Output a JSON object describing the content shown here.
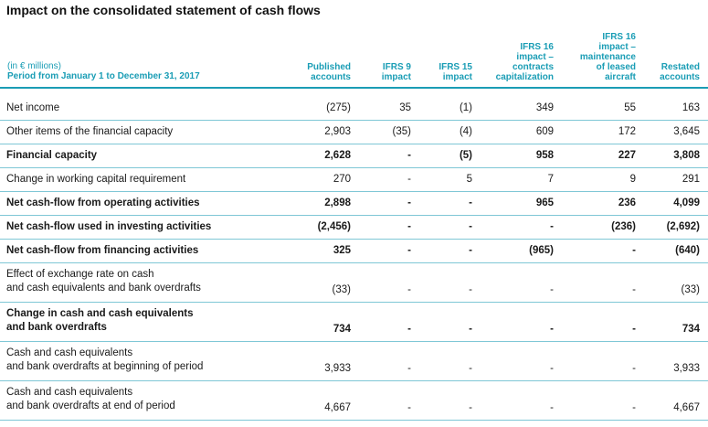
{
  "title": "Impact on the consolidated statement of cash flows",
  "header": {
    "units": "(in € millions)",
    "period": "Period from January 1 to December 31, 2017",
    "columns": [
      [
        "Published",
        "accounts"
      ],
      [
        "IFRS 9",
        "impact"
      ],
      [
        "IFRS 15",
        "impact"
      ],
      [
        "IFRS 16",
        "impact –",
        "contracts",
        "capitalization"
      ],
      [
        "IFRS 16",
        "impact –",
        "maintenance",
        "of leased",
        "aircraft"
      ],
      [
        "Restated",
        "accounts"
      ]
    ]
  },
  "rows": [
    {
      "label": [
        "Net income"
      ],
      "bold": false,
      "values": [
        "(275)",
        "35",
        "(1)",
        "349",
        "55",
        "163"
      ]
    },
    {
      "label": [
        "Other items of the financial capacity"
      ],
      "bold": false,
      "values": [
        "2,903",
        "(35)",
        "(4)",
        "609",
        "172",
        "3,645"
      ]
    },
    {
      "label": [
        "Financial capacity"
      ],
      "bold": true,
      "values": [
        "2,628",
        "-",
        "(5)",
        "958",
        "227",
        "3,808"
      ]
    },
    {
      "label": [
        "Change in working capital requirement"
      ],
      "bold": false,
      "values": [
        "270",
        "-",
        "5",
        "7",
        "9",
        "291"
      ]
    },
    {
      "label": [
        "Net cash-flow from operating activities"
      ],
      "bold": true,
      "values": [
        "2,898",
        "-",
        "-",
        "965",
        "236",
        "4,099"
      ]
    },
    {
      "label": [
        "Net cash-flow used in investing activities"
      ],
      "bold": true,
      "values": [
        "(2,456)",
        "-",
        "-",
        "-",
        "(236)",
        "(2,692)"
      ]
    },
    {
      "label": [
        "Net cash-flow from financing activities"
      ],
      "bold": true,
      "values": [
        "325",
        "-",
        "-",
        "(965)",
        "-",
        "(640)"
      ]
    },
    {
      "label": [
        "Effect of exchange rate on cash",
        "and cash equivalents and bank overdrafts"
      ],
      "bold": false,
      "values": [
        "(33)",
        "-",
        "-",
        "-",
        "-",
        "(33)"
      ]
    },
    {
      "label": [
        "Change in cash and cash equivalents",
        "and bank overdrafts"
      ],
      "bold": true,
      "values": [
        "734",
        "-",
        "-",
        "-",
        "-",
        "734"
      ]
    },
    {
      "label": [
        "Cash and cash equivalents",
        "and bank overdrafts at beginning of period"
      ],
      "bold": false,
      "values": [
        "3,933",
        "-",
        "-",
        "-",
        "-",
        "3,933"
      ]
    },
    {
      "label": [
        "Cash and cash equivalents",
        "and bank overdrafts at end of period"
      ],
      "bold": false,
      "values": [
        "4,667",
        "-",
        "-",
        "-",
        "-",
        "4,667"
      ]
    }
  ],
  "colors": {
    "accent": "#1a9db5",
    "rule": "#7fc7d6"
  }
}
